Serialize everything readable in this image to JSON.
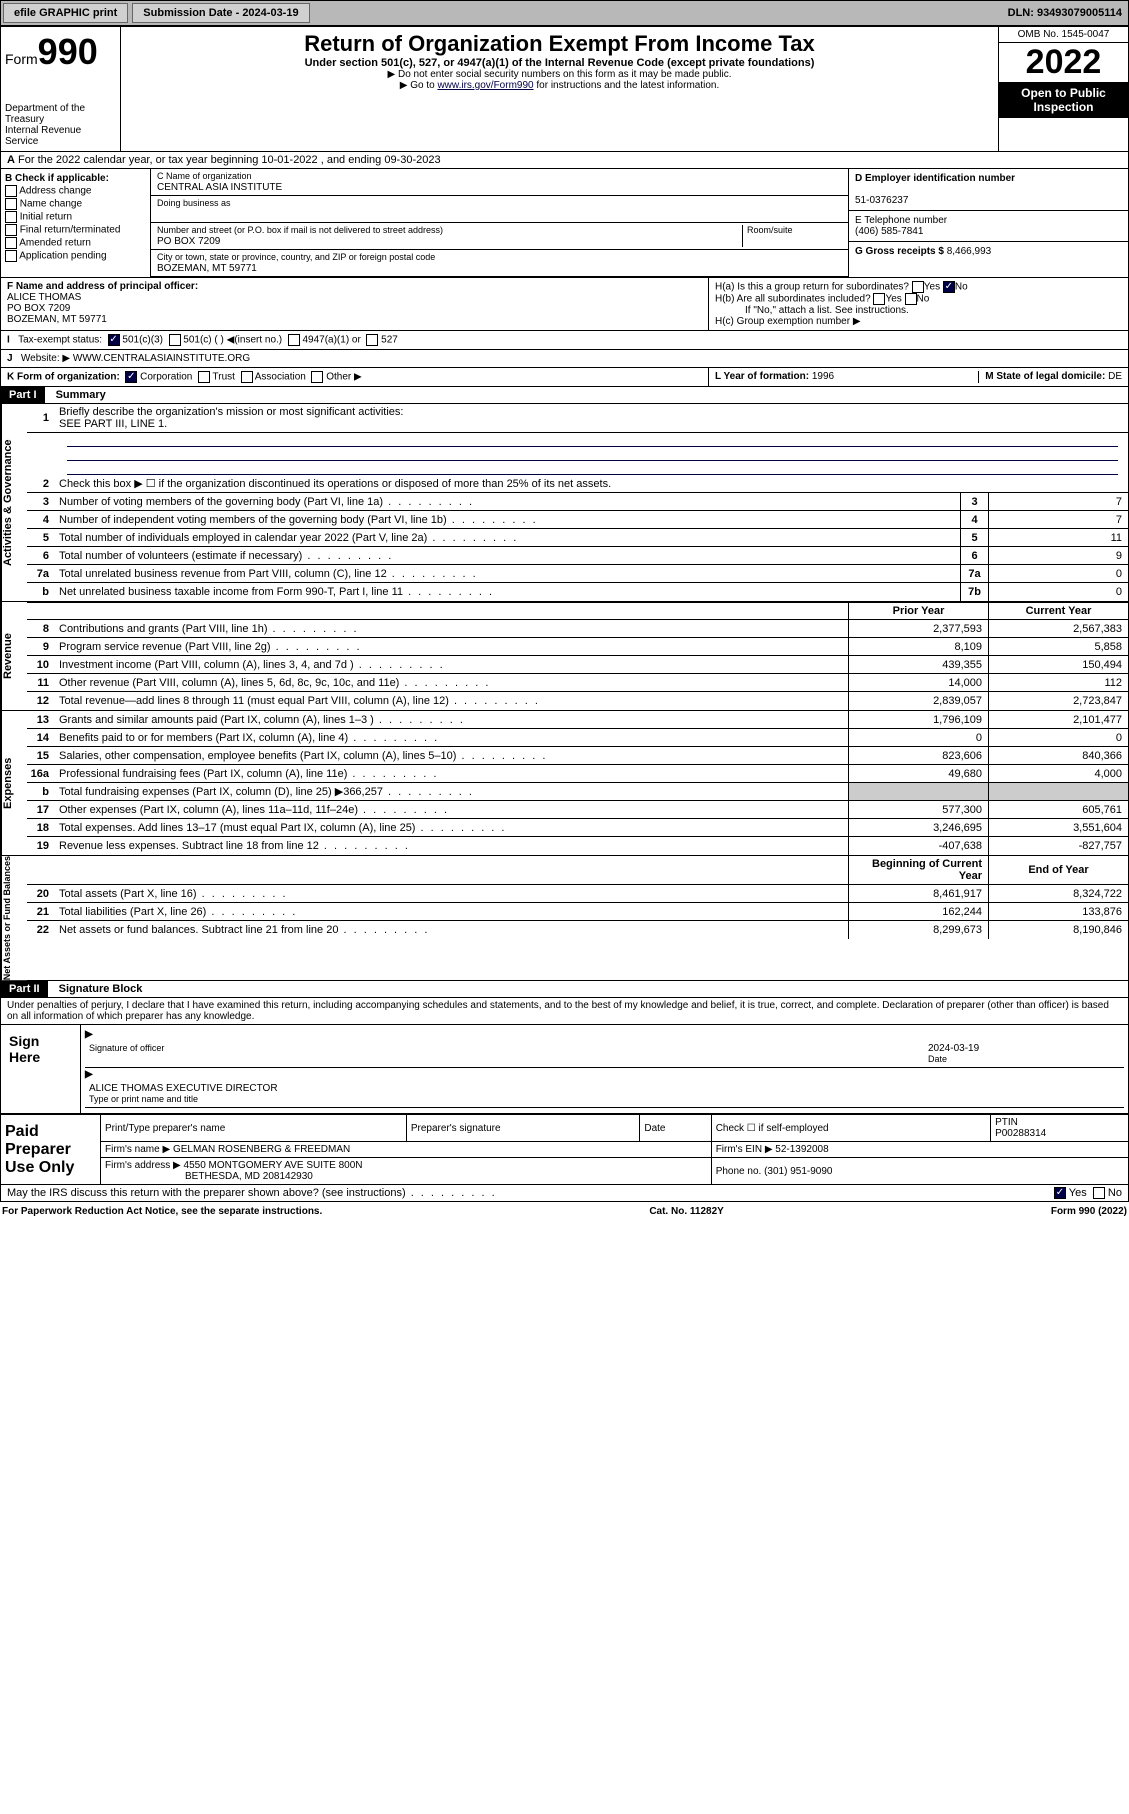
{
  "topbar": {
    "efile": "efile GRAPHIC print",
    "sub_label": "Submission Date - 2024-03-19",
    "dln": "DLN: 93493079005114"
  },
  "header": {
    "form_label": "Form",
    "form_num": "990",
    "title": "Return of Organization Exempt From Income Tax",
    "sub1": "Under section 501(c), 527, or 4947(a)(1) of the Internal Revenue Code (except private foundations)",
    "sub2": "▶ Do not enter social security numbers on this form as it may be made public.",
    "sub3_pre": "▶ Go to ",
    "sub3_link": "www.irs.gov/Form990",
    "sub3_post": " for instructions and the latest information.",
    "omb": "OMB No. 1545-0047",
    "year": "2022",
    "inspect": "Open to Public Inspection",
    "dept": "Department of the Treasury\nInternal Revenue Service"
  },
  "periodA": "For the 2022 calendar year, or tax year beginning 10-01-2022   , and ending 09-30-2023",
  "boxB": {
    "title": "B Check if applicable:",
    "opts": [
      "Address change",
      "Name change",
      "Initial return",
      "Final return/terminated",
      "Amended return",
      "Application pending"
    ]
  },
  "org": {
    "name_lbl": "C Name of organization",
    "name": "CENTRAL ASIA INSTITUTE",
    "dba_lbl": "Doing business as",
    "dba": "",
    "addr_lbl": "Number and street (or P.O. box if mail is not delivered to street address)",
    "room_lbl": "Room/suite",
    "addr": "PO BOX 7209",
    "city_lbl": "City or town, state or province, country, and ZIP or foreign postal code",
    "city": "BOZEMAN, MT  59771"
  },
  "d_ein_lbl": "D Employer identification number",
  "d_ein": "51-0376237",
  "e_phone_lbl": "E Telephone number",
  "e_phone": "(406) 585-7841",
  "g_gross_lbl": "G Gross receipts $",
  "g_gross": "8,466,993",
  "f": {
    "lbl": "F  Name and address of principal officer:",
    "name": "ALICE THOMAS",
    "addr1": "PO BOX 7209",
    "addr2": "BOZEMAN, MT  59771"
  },
  "h": {
    "a": "H(a)  Is this a group return for subordinates?",
    "b": "H(b)  Are all subordinates included?",
    "b_note": "If \"No,\" attach a list. See instructions.",
    "c": "H(c)  Group exemption number ▶"
  },
  "i_lbl": "Tax-exempt status:",
  "j_lbl": "Website: ▶ ",
  "j_site": "WWW.CENTRALASIAINSTITUTE.ORG",
  "k_lbl": "K Form of organization:",
  "l_lbl": "L Year of formation: ",
  "l_val": "1996",
  "m_lbl": "M State of legal domicile: ",
  "m_val": "DE",
  "part1": {
    "hdr": "Part I",
    "title": "Summary",
    "q1": "Briefly describe the organization's mission or most significant activities:",
    "q1a": "SEE PART III, LINE 1.",
    "q2": "Check this box ▶ ☐  if the organization discontinued its operations or disposed of more than 25% of its net assets.",
    "vert_gov": "Activities & Governance",
    "vert_rev": "Revenue",
    "vert_exp": "Expenses",
    "vert_net": "Net Assets or Fund Balances",
    "prior": "Prior Year",
    "current": "Current Year",
    "begin": "Beginning of Current Year",
    "end": "End of Year",
    "lines_gov": [
      {
        "n": "3",
        "t": "Number of voting members of the governing body (Part VI, line 1a)",
        "b": "3",
        "v": "7"
      },
      {
        "n": "4",
        "t": "Number of independent voting members of the governing body (Part VI, line 1b)",
        "b": "4",
        "v": "7"
      },
      {
        "n": "5",
        "t": "Total number of individuals employed in calendar year 2022 (Part V, line 2a)",
        "b": "5",
        "v": "11"
      },
      {
        "n": "6",
        "t": "Total number of volunteers (estimate if necessary)",
        "b": "6",
        "v": "9"
      },
      {
        "n": "7a",
        "t": "Total unrelated business revenue from Part VIII, column (C), line 12",
        "b": "7a",
        "v": "0"
      },
      {
        "n": "b",
        "t": "Net unrelated business taxable income from Form 990-T, Part I, line 11",
        "b": "7b",
        "v": "0"
      }
    ],
    "lines_rev": [
      {
        "n": "8",
        "t": "Contributions and grants (Part VIII, line 1h)",
        "p": "2,377,593",
        "c": "2,567,383"
      },
      {
        "n": "9",
        "t": "Program service revenue (Part VIII, line 2g)",
        "p": "8,109",
        "c": "5,858"
      },
      {
        "n": "10",
        "t": "Investment income (Part VIII, column (A), lines 3, 4, and 7d )",
        "p": "439,355",
        "c": "150,494"
      },
      {
        "n": "11",
        "t": "Other revenue (Part VIII, column (A), lines 5, 6d, 8c, 9c, 10c, and 11e)",
        "p": "14,000",
        "c": "112"
      },
      {
        "n": "12",
        "t": "Total revenue—add lines 8 through 11 (must equal Part VIII, column (A), line 12)",
        "p": "2,839,057",
        "c": "2,723,847"
      }
    ],
    "lines_exp": [
      {
        "n": "13",
        "t": "Grants and similar amounts paid (Part IX, column (A), lines 1–3 )",
        "p": "1,796,109",
        "c": "2,101,477"
      },
      {
        "n": "14",
        "t": "Benefits paid to or for members (Part IX, column (A), line 4)",
        "p": "0",
        "c": "0"
      },
      {
        "n": "15",
        "t": "Salaries, other compensation, employee benefits (Part IX, column (A), lines 5–10)",
        "p": "823,606",
        "c": "840,366"
      },
      {
        "n": "16a",
        "t": "Professional fundraising fees (Part IX, column (A), line 11e)",
        "p": "49,680",
        "c": "4,000"
      },
      {
        "n": "b",
        "t": "Total fundraising expenses (Part IX, column (D), line 25) ▶366,257",
        "p": "",
        "c": "",
        "shade": true
      },
      {
        "n": "17",
        "t": "Other expenses (Part IX, column (A), lines 11a–11d, 11f–24e)",
        "p": "577,300",
        "c": "605,761"
      },
      {
        "n": "18",
        "t": "Total expenses. Add lines 13–17 (must equal Part IX, column (A), line 25)",
        "p": "3,246,695",
        "c": "3,551,604"
      },
      {
        "n": "19",
        "t": "Revenue less expenses. Subtract line 18 from line 12",
        "p": "-407,638",
        "c": "-827,757"
      }
    ],
    "lines_net": [
      {
        "n": "20",
        "t": "Total assets (Part X, line 16)",
        "p": "8,461,917",
        "c": "8,324,722"
      },
      {
        "n": "21",
        "t": "Total liabilities (Part X, line 26)",
        "p": "162,244",
        "c": "133,876"
      },
      {
        "n": "22",
        "t": "Net assets or fund balances. Subtract line 21 from line 20",
        "p": "8,299,673",
        "c": "8,190,846"
      }
    ]
  },
  "part2": {
    "hdr": "Part II",
    "title": "Signature Block",
    "decl": "Under penalties of perjury, I declare that I have examined this return, including accompanying schedules and statements, and to the best of my knowledge and belief, it is true, correct, and complete. Declaration of preparer (other than officer) is based on all information of which preparer has any knowledge.",
    "sign_here": "Sign Here",
    "sig_officer": "Signature of officer",
    "sig_date": "2024-03-19",
    "date_lbl": "Date",
    "officer_name": "ALICE THOMAS  EXECUTIVE DIRECTOR",
    "type_name": "Type or print name and title",
    "paid": "Paid Preparer Use Only",
    "prep_name_lbl": "Print/Type preparer's name",
    "prep_sig_lbl": "Preparer's signature",
    "prep_date_lbl": "Date",
    "prep_check": "Check ☐ if self-employed",
    "ptin_lbl": "PTIN",
    "ptin": "P00288314",
    "firm_name_lbl": "Firm's name    ▶",
    "firm_name": "GELMAN ROSENBERG & FREEDMAN",
    "firm_ein_lbl": "Firm's EIN ▶",
    "firm_ein": "52-1392008",
    "firm_addr_lbl": "Firm's address ▶",
    "firm_addr": "4550 MONTGOMERY AVE SUITE 800N",
    "firm_city": "BETHESDA, MD  208142930",
    "firm_phone_lbl": "Phone no.",
    "firm_phone": "(301) 951-9090",
    "irs_q": "May the IRS discuss this return with the preparer shown above? (see instructions)"
  },
  "footer": {
    "left": "For Paperwork Reduction Act Notice, see the separate instructions.",
    "mid": "Cat. No. 11282Y",
    "right": "Form 990 (2022)"
  }
}
